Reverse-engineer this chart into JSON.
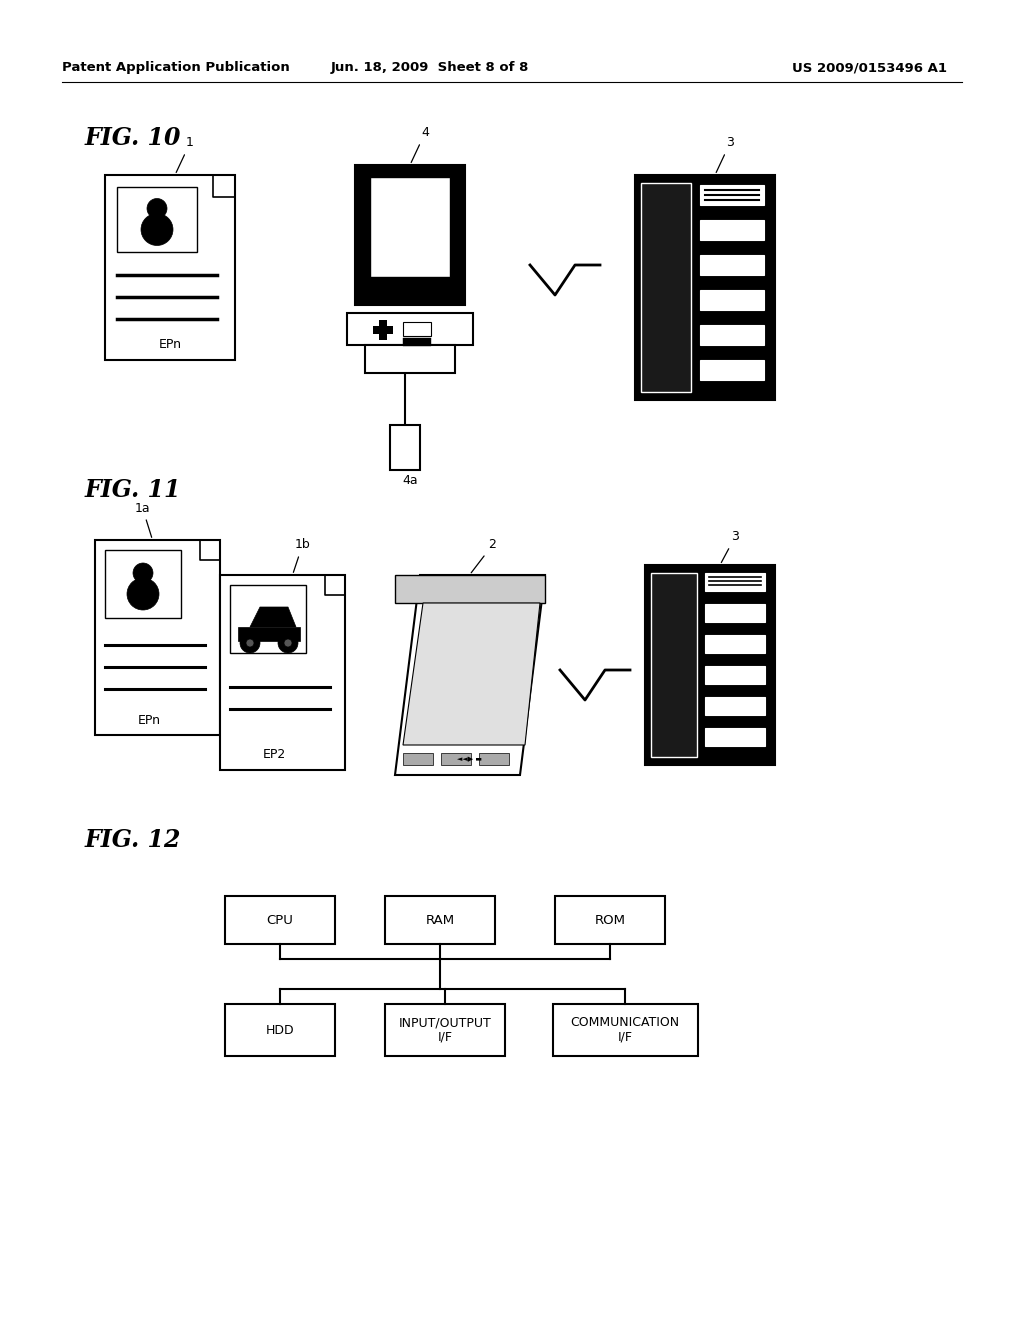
{
  "header_left": "Patent Application Publication",
  "header_mid": "Jun. 18, 2009  Sheet 8 of 8",
  "header_right": "US 2009/0153496 A1",
  "fig10_label": "FIG. 10",
  "fig11_label": "FIG. 11",
  "fig12_label": "FIG. 12",
  "bg_color": "#ffffff",
  "text_color": "#000000"
}
